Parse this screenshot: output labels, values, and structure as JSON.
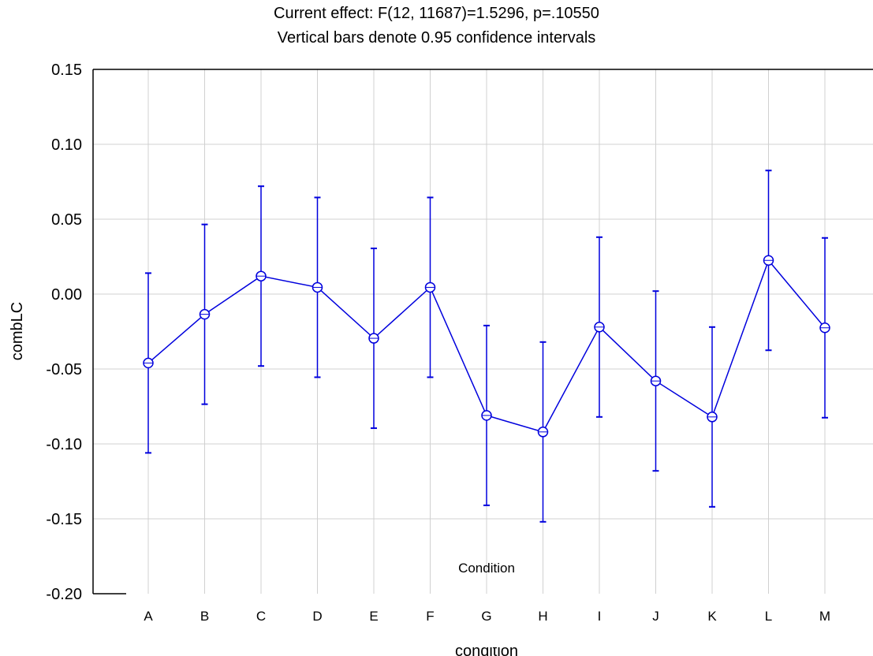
{
  "chart_data": {
    "type": "line",
    "title": "Current effect: F(12, 11687)=1.5296, p=.10550",
    "subtitle": "Vertical bars denote 0.95 confidence intervals",
    "xlabel": "Condition",
    "xlabel_behind": "condition",
    "ylabel": "combLC",
    "categories": [
      "A",
      "B",
      "C",
      "D",
      "E",
      "F",
      "G",
      "H",
      "I",
      "J",
      "K",
      "L",
      "M"
    ],
    "values": [
      -0.046,
      -0.0135,
      0.012,
      0.0045,
      -0.0295,
      0.0045,
      -0.081,
      -0.092,
      -0.022,
      -0.058,
      -0.082,
      0.0225,
      -0.0225
    ],
    "ci_lower": [
      -0.106,
      -0.0735,
      -0.048,
      -0.0555,
      -0.0895,
      -0.0555,
      -0.141,
      -0.152,
      -0.082,
      -0.118,
      -0.142,
      -0.0375,
      -0.0825
    ],
    "ci_upper": [
      0.014,
      0.0465,
      0.072,
      0.0645,
      0.0305,
      0.0645,
      -0.021,
      -0.032,
      0.038,
      0.002,
      -0.022,
      0.0825,
      0.0375
    ],
    "ylim": [
      -0.2,
      0.15
    ],
    "yticks": [
      "0.15",
      "0.10",
      "0.05",
      "0.00",
      "-0.05",
      "-0.10",
      "-0.15",
      "-0.20"
    ],
    "grid": true,
    "series_color": "#0000dd",
    "grid_color": "#d0d0d0"
  }
}
